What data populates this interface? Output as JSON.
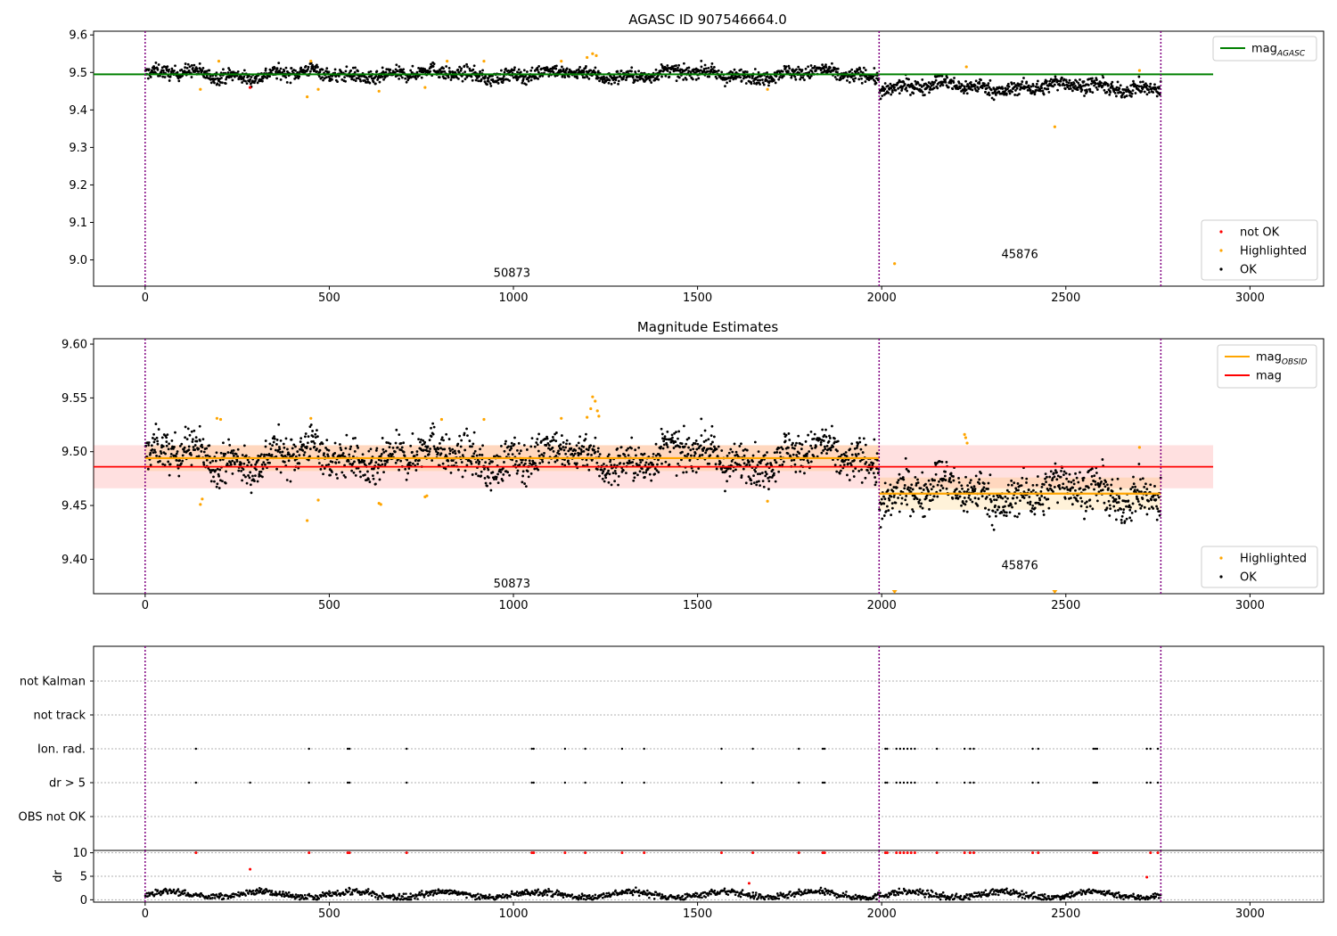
{
  "chart_data": [
    {
      "type": "scatter",
      "title": "AGASC ID 907546664.0",
      "xlabel": "",
      "ylabel": "",
      "xlim": [
        -140,
        3200
      ],
      "ylim": [
        8.93,
        9.61
      ],
      "xticks": [
        0,
        500,
        1000,
        1500,
        2000,
        2500,
        3000
      ],
      "yticks": [
        9.0,
        9.1,
        9.2,
        9.3,
        9.4,
        9.5,
        9.6
      ],
      "ytick_labels": [
        "9.0",
        "9.1",
        "9.2",
        "9.3",
        "9.4",
        "9.5",
        "9.6"
      ],
      "observation_boundaries": [
        0,
        1993,
        2758
      ],
      "observation_labels": [
        {
          "text": "50873",
          "x": 996,
          "y": 8.965
        },
        {
          "text": "45876",
          "x": 2375,
          "y": 9.015
        }
      ],
      "reference_line": {
        "name": "mag$_{AGASC}$",
        "label_main": "mag",
        "label_sub": "AGASC",
        "y": 9.495,
        "x": [
          -140,
          2900
        ],
        "color": "#008000"
      },
      "segments": [
        {
          "x": [
            0,
            1993
          ],
          "mean": 9.495,
          "spread": 0.013
        },
        {
          "x": [
            1993,
            2758
          ],
          "mean": 9.462,
          "spread": 0.014
        }
      ],
      "highlighted_points": [
        [
          150,
          9.455
        ],
        [
          200,
          9.53
        ],
        [
          440,
          9.435
        ],
        [
          450,
          9.53
        ],
        [
          470,
          9.455
        ],
        [
          635,
          9.45
        ],
        [
          760,
          9.46
        ],
        [
          820,
          9.53
        ],
        [
          920,
          9.53
        ],
        [
          1130,
          9.53
        ],
        [
          1200,
          9.54
        ],
        [
          1215,
          9.55
        ],
        [
          1225,
          9.545
        ],
        [
          1690,
          9.455
        ],
        [
          2035,
          8.99
        ],
        [
          2230,
          9.515
        ],
        [
          2470,
          9.355
        ],
        [
          2700,
          9.505
        ]
      ],
      "not_ok_points": [
        [
          285,
          9.46
        ]
      ],
      "legend": {
        "placement": "bottom-right",
        "entries": [
          {
            "name": "not OK",
            "color": "#ff0000"
          },
          {
            "name": "Highlighted",
            "color": "#ffa500"
          },
          {
            "name": "OK",
            "color": "#000000"
          }
        ]
      },
      "grid": false
    },
    {
      "type": "scatter",
      "title": "Magnitude Estimates",
      "xlabel": "",
      "ylabel": "",
      "xlim": [
        -140,
        3200
      ],
      "ylim": [
        9.368,
        9.605
      ],
      "xticks": [
        0,
        500,
        1000,
        1500,
        2000,
        2500,
        3000
      ],
      "yticks": [
        9.4,
        9.45,
        9.5,
        9.55,
        9.6
      ],
      "ytick_labels": [
        "9.40",
        "9.45",
        "9.50",
        "9.55",
        "9.60"
      ],
      "observation_boundaries": [
        0,
        1993,
        2758
      ],
      "observation_labels": [
        {
          "text": "50873",
          "x": 996,
          "y": 9.377
        },
        {
          "text": "45876",
          "x": 2375,
          "y": 9.394
        }
      ],
      "mag_line": {
        "name": "mag",
        "y": 9.486,
        "x": [
          -140,
          2900
        ],
        "band": [
          9.466,
          9.506
        ],
        "color": "#ff0000"
      },
      "obsid_mag": [
        {
          "x": [
            0,
            1993
          ],
          "y": 9.494,
          "band": [
            9.482,
            9.506
          ]
        },
        {
          "x": [
            1993,
            2758
          ],
          "y": 9.461,
          "band": [
            9.446,
            9.476
          ]
        }
      ],
      "obsid_legend": {
        "label_main": "mag",
        "label_sub": "OBSID",
        "color": "#ffa500"
      },
      "highlighted_points": [
        [
          150,
          9.451
        ],
        [
          155,
          9.456
        ],
        [
          195,
          9.531
        ],
        [
          205,
          9.53
        ],
        [
          440,
          9.436
        ],
        [
          450,
          9.531
        ],
        [
          470,
          9.455
        ],
        [
          635,
          9.452
        ],
        [
          640,
          9.451
        ],
        [
          760,
          9.458
        ],
        [
          765,
          9.459
        ],
        [
          805,
          9.53
        ],
        [
          920,
          9.53
        ],
        [
          1130,
          9.531
        ],
        [
          1200,
          9.532
        ],
        [
          1210,
          9.54
        ],
        [
          1215,
          9.551
        ],
        [
          1222,
          9.547
        ],
        [
          1228,
          9.538
        ],
        [
          1232,
          9.533
        ],
        [
          1690,
          9.454
        ],
        [
          2225,
          9.516
        ],
        [
          2228,
          9.513
        ],
        [
          2232,
          9.508
        ],
        [
          2700,
          9.504
        ]
      ],
      "offscale_points": [
        [
          2035,
          9.368
        ],
        [
          2470,
          9.368
        ]
      ],
      "legend": {
        "placement": "bottom-right",
        "entries": [
          {
            "name": "Highlighted",
            "color": "#ffa500"
          },
          {
            "name": "OK",
            "color": "#000000"
          }
        ]
      },
      "grid": false
    },
    {
      "type": "scatter",
      "title": "",
      "xlim": [
        -140,
        3200
      ],
      "flag_rows": [
        "not Kalman",
        "not track",
        "Ion. rad.",
        "dr > 5",
        "OBS not OK"
      ],
      "flag_points": {
        "Ion. rad.": [
          138,
          445,
          550,
          555,
          710,
          1050,
          1055,
          1140,
          1195,
          1295,
          1355,
          1565,
          1650,
          1775,
          1840,
          1845,
          2010,
          2015,
          2040,
          2050,
          2060,
          2070,
          2080,
          2090,
          2150,
          2225,
          2240,
          2250,
          2410,
          2425,
          2575,
          2580,
          2585,
          2720,
          2730,
          2750
        ],
        "dr > 5": [
          138,
          285,
          445,
          550,
          555,
          710,
          1050,
          1055,
          1140,
          1195,
          1295,
          1355,
          1565,
          1650,
          1775,
          1840,
          1845,
          2010,
          2015,
          2040,
          2050,
          2060,
          2070,
          2080,
          2090,
          2150,
          2225,
          2240,
          2250,
          2410,
          2425,
          2575,
          2580,
          2585,
          2720,
          2730,
          2750
        ]
      },
      "observation_boundaries": [
        0,
        1993,
        2758
      ],
      "grid": true
    },
    {
      "type": "scatter",
      "title": "",
      "xlabel": "",
      "ylabel": "dr",
      "xlim": [
        -140,
        3200
      ],
      "ylim": [
        -0.5,
        10.5
      ],
      "xticks": [
        0,
        500,
        1000,
        1500,
        2000,
        2500,
        3000
      ],
      "yticks": [
        0,
        5,
        10
      ],
      "ytick_labels": [
        "0",
        "5",
        "10"
      ],
      "outlier_points": [
        [
          138,
          10
        ],
        [
          285,
          6.5
        ],
        [
          445,
          10
        ],
        [
          550,
          10
        ],
        [
          555,
          10
        ],
        [
          710,
          10
        ],
        [
          1050,
          10
        ],
        [
          1055,
          10
        ],
        [
          1140,
          10
        ],
        [
          1195,
          10
        ],
        [
          1295,
          10
        ],
        [
          1355,
          10
        ],
        [
          1565,
          10
        ],
        [
          1640,
          3.5
        ],
        [
          1650,
          10
        ],
        [
          1775,
          10
        ],
        [
          1840,
          10
        ],
        [
          1845,
          10
        ],
        [
          2010,
          10
        ],
        [
          2015,
          10
        ],
        [
          2040,
          10
        ],
        [
          2050,
          10
        ],
        [
          2060,
          10
        ],
        [
          2070,
          10
        ],
        [
          2080,
          10
        ],
        [
          2090,
          10
        ],
        [
          2150,
          10
        ],
        [
          2225,
          10
        ],
        [
          2240,
          10
        ],
        [
          2250,
          10
        ],
        [
          2410,
          10
        ],
        [
          2425,
          10
        ],
        [
          2575,
          10
        ],
        [
          2580,
          10
        ],
        [
          2585,
          10
        ],
        [
          2720,
          4.8
        ],
        [
          2730,
          10
        ],
        [
          2750,
          10
        ]
      ],
      "observation_boundaries": [
        0,
        1993,
        2758
      ],
      "grid": true
    }
  ]
}
